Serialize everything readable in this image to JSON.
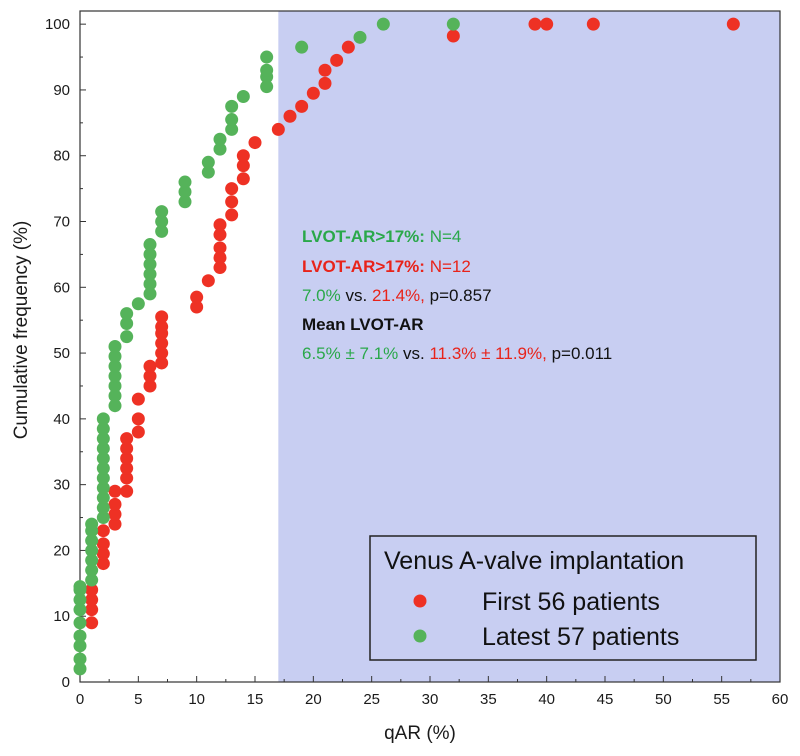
{
  "chart_data": {
    "type": "scatter",
    "title": "",
    "xlabel": "qAR (%)",
    "ylabel": "Cumulative frequency (%)",
    "xlim": [
      0,
      60
    ],
    "ylim": [
      0,
      102
    ],
    "x_ticks": [
      "0",
      "5",
      "10",
      "15",
      "20",
      "25",
      "30",
      "35",
      "40",
      "45",
      "50",
      "55",
      "60"
    ],
    "y_ticks": [
      "0",
      "10",
      "20",
      "30",
      "40",
      "50",
      "60",
      "70",
      "80",
      "90",
      "100"
    ],
    "grid": false,
    "shaded_region": {
      "x_from": 17,
      "x_to": 60,
      "color": "#c8cef2"
    },
    "legend": {
      "title": "Venus A-valve implantation",
      "placement": "bottom-right",
      "entries": [
        {
          "label": "First 56 patients",
          "color": "#ee3124"
        },
        {
          "label": "Latest 57 patients",
          "color": "#55b35a"
        }
      ]
    },
    "annotations": {
      "line1": {
        "label": "LVOT-AR>17%:",
        "value": " N=4",
        "color": "#2aa84a"
      },
      "line2": {
        "label": "LVOT-AR>17%:",
        "value": " N=12",
        "color": "#e8231a"
      },
      "line3": {
        "green": "7.0%",
        "vs": " vs. ",
        "red": "21.4%,",
        "p": " p=0.857"
      },
      "line4": {
        "label": "Mean LVOT-AR"
      },
      "line5": {
        "green": "6.5% ± 7.1%",
        "vs": " vs. ",
        "red": "11.3% ± 11.9%,",
        "p": " p=0.011"
      }
    },
    "series": [
      {
        "name": "First 56 patients",
        "color": "#ee3124",
        "x": [
          1,
          1,
          1,
          1,
          2,
          2,
          2,
          2,
          3,
          3,
          3,
          3,
          4,
          4,
          4,
          4,
          4,
          4,
          5,
          5,
          5,
          6,
          6,
          6,
          7,
          7,
          7,
          7,
          7,
          7,
          10,
          10,
          11,
          12,
          12,
          12,
          12,
          12,
          13,
          13,
          13,
          14,
          14,
          14,
          15,
          17,
          18,
          19,
          20,
          21,
          21,
          22,
          23,
          32,
          39,
          40,
          44,
          56
        ],
        "y": [
          9,
          11,
          12.5,
          14,
          18,
          19.5,
          21,
          23,
          24,
          25.5,
          27,
          29,
          29,
          31,
          32.5,
          34,
          35.5,
          37,
          38,
          40,
          43,
          45,
          46.5,
          48,
          48.5,
          50,
          51.5,
          53,
          54,
          55.5,
          57,
          58.5,
          61,
          63,
          64.5,
          66,
          68,
          69.5,
          71,
          73,
          75,
          76.5,
          78.5,
          80,
          82,
          84,
          86,
          87.5,
          89.5,
          91,
          93,
          94.5,
          96.5,
          98.2,
          100,
          100,
          100,
          100
        ]
      },
      {
        "name": "Latest 57 patients",
        "color": "#55b35a",
        "x": [
          0,
          0,
          0,
          0,
          0,
          0,
          0,
          0,
          0,
          1,
          1,
          1,
          1,
          1,
          1,
          1,
          2,
          2,
          2,
          2,
          2,
          2,
          2,
          2,
          2,
          2,
          2,
          3,
          3,
          3,
          3,
          3,
          3,
          3,
          4,
          4,
          4,
          5,
          6,
          6,
          6,
          6,
          6,
          6,
          7,
          7,
          7,
          9,
          9,
          9,
          11,
          11,
          12,
          12,
          13,
          13,
          13,
          14,
          16,
          16,
          16,
          16,
          19,
          24,
          26,
          32
        ],
        "y": [
          2,
          3.5,
          5.5,
          7,
          9,
          11,
          12.5,
          14,
          14.5,
          15.5,
          17,
          18.5,
          20,
          21.5,
          23,
          24,
          25,
          26.5,
          28,
          29.5,
          31,
          32.5,
          34,
          35.5,
          37,
          38.5,
          40,
          42,
          43.5,
          45,
          46.5,
          48,
          49.5,
          51,
          52.5,
          54.5,
          56,
          57.5,
          59,
          60.5,
          62,
          63.5,
          65,
          66.5,
          68.5,
          70,
          71.5,
          73,
          74.5,
          76,
          77.5,
          79,
          81,
          82.5,
          84,
          85.5,
          87.5,
          89,
          90.5,
          92,
          93,
          95,
          96.5,
          98,
          100,
          100
        ]
      }
    ]
  }
}
